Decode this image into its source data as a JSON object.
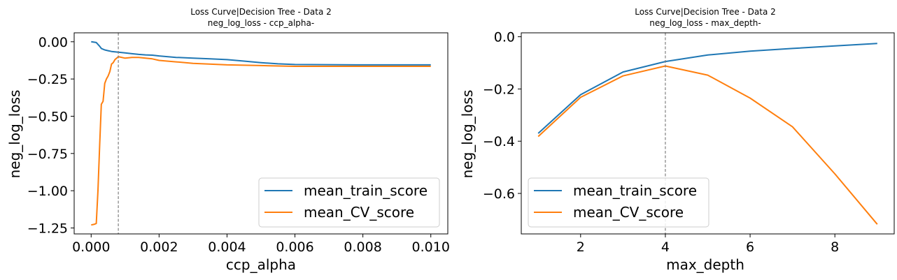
{
  "colors": {
    "train": "#1f77b4",
    "cv": "#ff7f0e",
    "marker": "#808080"
  },
  "chart_data": [
    {
      "type": "line",
      "title_line1": "Loss Curve|Decision Tree - Data 2",
      "title_line2": "neg_log_loss - ccp_alpha-",
      "xlabel": "ccp_alpha",
      "ylabel": "neg_log_loss",
      "xlim": [
        -0.0005,
        0.0105
      ],
      "ylim": [
        -1.29,
        0.06
      ],
      "xticks": [
        0.0,
        0.002,
        0.004,
        0.006,
        0.008,
        0.01
      ],
      "xtick_labels": [
        "0.000",
        "0.002",
        "0.004",
        "0.006",
        "0.008",
        "0.010"
      ],
      "yticks": [
        0.0,
        -0.25,
        -0.5,
        -0.75,
        -1.0,
        -1.25
      ],
      "ytick_labels": [
        "0.00",
        "−0.25",
        "−0.50",
        "−0.75",
        "−1.00",
        "−1.25"
      ],
      "vline": 0.0008,
      "legend_position": "lower right",
      "series": [
        {
          "name": "mean_train_score",
          "x": [
            0.0,
            0.00015,
            0.00025,
            0.0003,
            0.0004,
            0.0005,
            0.0006,
            0.0008,
            0.001,
            0.0012,
            0.0014,
            0.0016,
            0.0018,
            0.002,
            0.0025,
            0.003,
            0.0035,
            0.004,
            0.0045,
            0.005,
            0.0055,
            0.006,
            0.008,
            0.01
          ],
          "y": [
            0.0,
            -0.005,
            -0.03,
            -0.045,
            -0.055,
            -0.06,
            -0.065,
            -0.07,
            -0.075,
            -0.08,
            -0.085,
            -0.088,
            -0.09,
            -0.095,
            -0.105,
            -0.11,
            -0.115,
            -0.12,
            -0.13,
            -0.14,
            -0.148,
            -0.153,
            -0.155,
            -0.155
          ]
        },
        {
          "name": "mean_CV_score",
          "x": [
            0.0,
            0.0001,
            0.00015,
            0.0002,
            0.00025,
            0.0003,
            0.00035,
            0.0004,
            0.00045,
            0.0005,
            0.00055,
            0.0006,
            0.00065,
            0.0007,
            0.00075,
            0.0008,
            0.001,
            0.0012,
            0.0014,
            0.0016,
            0.0018,
            0.002,
            0.0025,
            0.003,
            0.004,
            0.005,
            0.006,
            0.008,
            0.01
          ],
          "y": [
            -1.23,
            -1.225,
            -1.22,
            -1.0,
            -0.7,
            -0.42,
            -0.4,
            -0.28,
            -0.25,
            -0.23,
            -0.2,
            -0.15,
            -0.14,
            -0.12,
            -0.11,
            -0.1,
            -0.11,
            -0.105,
            -0.105,
            -0.11,
            -0.115,
            -0.125,
            -0.135,
            -0.145,
            -0.155,
            -0.16,
            -0.165,
            -0.165,
            -0.165
          ]
        }
      ]
    },
    {
      "type": "line",
      "title_line1": "Loss Curve|Decision Tree - Data 2",
      "title_line2": "neg_log_loss - max_depth-",
      "xlabel": "max_depth",
      "ylabel": "neg_log_loss",
      "xlim": [
        0.6,
        9.4
      ],
      "ylim": [
        -0.755,
        0.015
      ],
      "xticks": [
        2,
        4,
        6,
        8
      ],
      "xtick_labels": [
        "2",
        "4",
        "6",
        "8"
      ],
      "yticks": [
        0.0,
        -0.2,
        -0.4,
        -0.6
      ],
      "ytick_labels": [
        "0.0",
        "−0.2",
        "−0.4",
        "−0.6"
      ],
      "vline": 4,
      "legend_position": "lower left",
      "series": [
        {
          "name": "mean_train_score",
          "x": [
            1,
            2,
            3,
            4,
            5,
            6,
            7,
            8,
            9
          ],
          "y": [
            -0.37,
            -0.222,
            -0.135,
            -0.095,
            -0.07,
            -0.055,
            -0.045,
            -0.035,
            -0.026
          ]
        },
        {
          "name": "mean_CV_score",
          "x": [
            1,
            2,
            3,
            4,
            5,
            6,
            7,
            8,
            9
          ],
          "y": [
            -0.382,
            -0.232,
            -0.15,
            -0.112,
            -0.147,
            -0.235,
            -0.345,
            -0.525,
            -0.718
          ]
        }
      ]
    }
  ]
}
